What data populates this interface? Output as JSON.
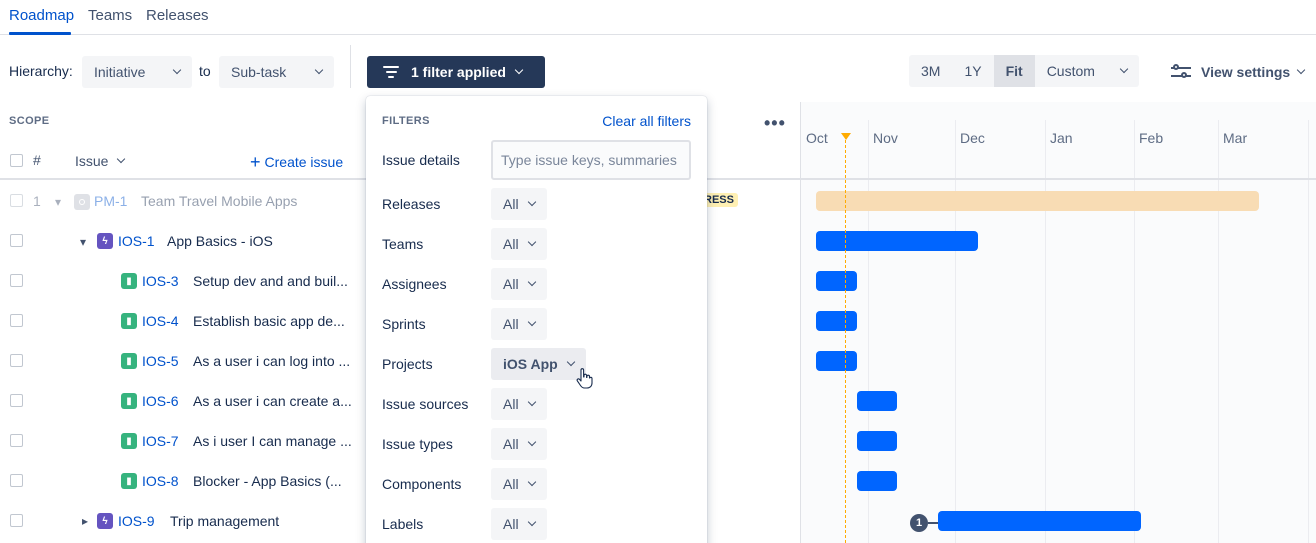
{
  "tabs": [
    {
      "label": "Roadmap",
      "active": true
    },
    {
      "label": "Teams",
      "active": false
    },
    {
      "label": "Releases",
      "active": false
    }
  ],
  "toolbar": {
    "hierarchy_label": "Hierarchy:",
    "hierarchy_from": "Initiative",
    "to_label": "to",
    "hierarchy_to": "Sub-task",
    "filter_button": "1 filter applied",
    "ranges": [
      {
        "label": "3M",
        "active": false
      },
      {
        "label": "1Y",
        "active": false
      },
      {
        "label": "Fit",
        "active": true
      },
      {
        "label": "Custom",
        "active": false
      }
    ],
    "view_settings": "View settings"
  },
  "scope": {
    "label": "SCOPE",
    "hash_header": "#",
    "issue_header": "Issue",
    "create_issue": "Create issue",
    "more": "•••"
  },
  "rows": [
    {
      "num": "1",
      "key": "PM-1",
      "title": "Team Travel Mobile Apps",
      "type": "initiative",
      "dim": true
    },
    {
      "num": "",
      "key": "IOS-1",
      "title": "App Basics - iOS",
      "type": "epic"
    },
    {
      "num": "",
      "key": "IOS-3",
      "title": "Setup dev and and buil...",
      "type": "story"
    },
    {
      "num": "",
      "key": "IOS-4",
      "title": "Establish basic app de...",
      "type": "story"
    },
    {
      "num": "",
      "key": "IOS-5",
      "title": "As a user i can log into ...",
      "type": "story"
    },
    {
      "num": "",
      "key": "IOS-6",
      "title": "As a user i can create a...",
      "type": "story"
    },
    {
      "num": "",
      "key": "IOS-7",
      "title": "As i user I can manage ...",
      "type": "story"
    },
    {
      "num": "",
      "key": "IOS-8",
      "title": "Blocker - App Basics (...",
      "type": "story"
    },
    {
      "num": "",
      "key": "IOS-9",
      "title": "Trip management",
      "type": "epic"
    }
  ],
  "status_fragment": "RESS",
  "timeline": {
    "months": [
      "Oct",
      "Nov",
      "Dec",
      "Jan",
      "Feb",
      "Mar"
    ],
    "dependency_count": "1",
    "today_color": "#ffab00",
    "bar_color": "#0065ff",
    "initiative_bar_color": "#f8dcb4"
  },
  "filters": {
    "title": "FILTERS",
    "clear_all": "Clear all filters",
    "issue_details_label": "Issue details",
    "issue_details_placeholder": "Type issue keys, summaries",
    "items": [
      {
        "label": "Releases",
        "value": "All"
      },
      {
        "label": "Teams",
        "value": "All"
      },
      {
        "label": "Assignees",
        "value": "All"
      },
      {
        "label": "Sprints",
        "value": "All"
      },
      {
        "label": "Projects",
        "value": "iOS App"
      },
      {
        "label": "Issue sources",
        "value": "All"
      },
      {
        "label": "Issue types",
        "value": "All"
      },
      {
        "label": "Components",
        "value": "All"
      },
      {
        "label": "Labels",
        "value": "All"
      }
    ]
  }
}
